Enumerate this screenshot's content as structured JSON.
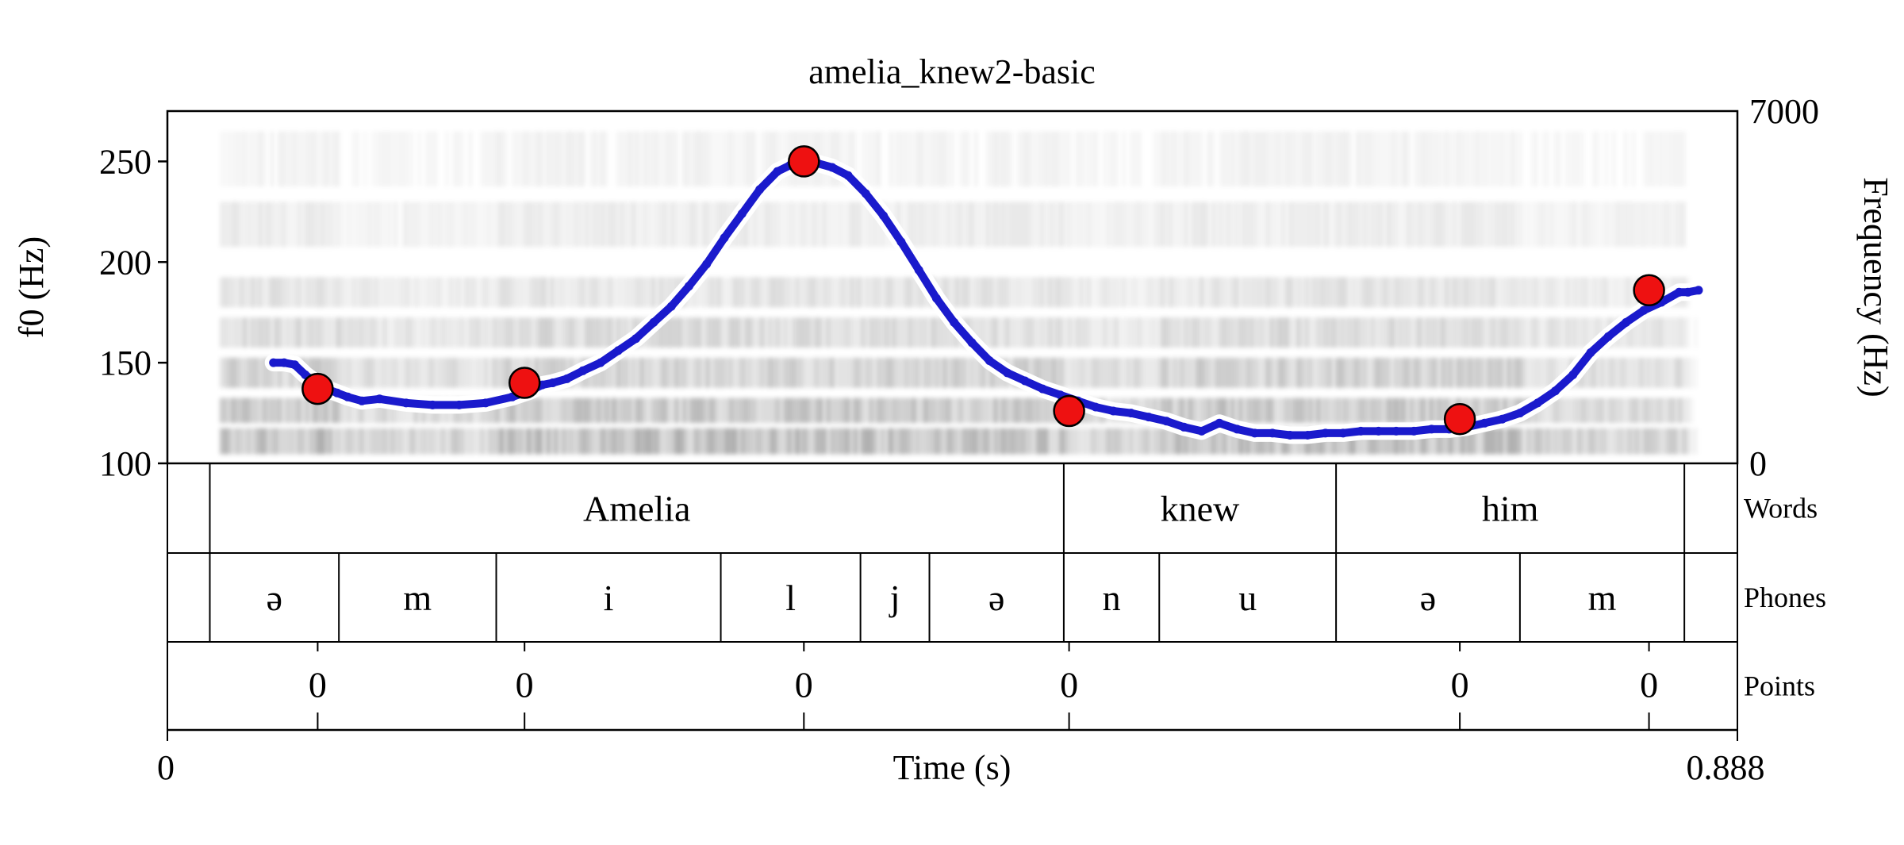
{
  "chart_data": {
    "type": "line",
    "title": "amelia_knew2-basic",
    "xlabel": "Time (s)",
    "ylabel": "f0 (Hz)",
    "ylabel_right": "Frequency (Hz)",
    "xlim": [
      0,
      0.888
    ],
    "x_tick_labels": [
      "0",
      "0.888"
    ],
    "ylim": [
      100,
      275
    ],
    "y_ticks": [
      100,
      150,
      200,
      250
    ],
    "y_tick_labels": [
      "100",
      "150",
      "200",
      "250"
    ],
    "y2lim": [
      0,
      7000
    ],
    "y2_tick_labels": [
      "7000",
      "0"
    ],
    "background": "spectrogram",
    "colors": {
      "f0_line": "#1a1acc",
      "f0_halo": "#ffffff",
      "target_fill": "#ee1111",
      "spectro": "#000000"
    },
    "f0_series": {
      "x": [
        0.06,
        0.066,
        0.072,
        0.078,
        0.084,
        0.09,
        0.096,
        0.102,
        0.11,
        0.12,
        0.135,
        0.15,
        0.165,
        0.18,
        0.195,
        0.205,
        0.212,
        0.218,
        0.226,
        0.235,
        0.245,
        0.255,
        0.265,
        0.275,
        0.285,
        0.295,
        0.305,
        0.315,
        0.325,
        0.335,
        0.345,
        0.352,
        0.36,
        0.368,
        0.376,
        0.385,
        0.395,
        0.405,
        0.415,
        0.425,
        0.435,
        0.445,
        0.455,
        0.465,
        0.475,
        0.485,
        0.495,
        0.505,
        0.515,
        0.525,
        0.535,
        0.545,
        0.555,
        0.565,
        0.575,
        0.585,
        0.595,
        0.605,
        0.615,
        0.625,
        0.635,
        0.645,
        0.655,
        0.665,
        0.675,
        0.685,
        0.695,
        0.705,
        0.715,
        0.725,
        0.735,
        0.745,
        0.755,
        0.765,
        0.775,
        0.785,
        0.795,
        0.805,
        0.815,
        0.825,
        0.835,
        0.845,
        0.855,
        0.86,
        0.866
      ],
      "y": [
        150,
        150,
        149,
        144,
        140,
        137,
        135,
        133,
        131,
        132,
        130,
        129,
        129,
        130,
        133,
        136,
        139,
        140,
        142,
        146,
        150,
        156,
        162,
        170,
        178,
        188,
        199,
        212,
        224,
        236,
        245,
        248,
        249,
        249,
        247,
        243,
        234,
        223,
        210,
        196,
        182,
        170,
        160,
        151,
        145,
        141,
        137,
        134,
        131,
        128,
        126,
        125,
        123,
        121,
        118,
        116,
        120,
        117,
        115,
        115,
        114,
        114,
        115,
        115,
        116,
        116,
        116,
        116,
        117,
        117,
        118,
        120,
        122,
        125,
        130,
        136,
        144,
        155,
        163,
        170,
        176,
        180,
        185,
        185,
        186
      ]
    },
    "targets": {
      "x": [
        0.085,
        0.202,
        0.36,
        0.51,
        0.731,
        0.838
      ],
      "y": [
        137,
        140,
        250,
        126,
        122,
        186
      ]
    },
    "tiers": [
      {
        "name": "Words",
        "intervals": [
          {
            "start": 0.0,
            "end": 0.024,
            "label": ""
          },
          {
            "start": 0.024,
            "end": 0.507,
            "label": "Amelia"
          },
          {
            "start": 0.507,
            "end": 0.661,
            "label": "knew"
          },
          {
            "start": 0.661,
            "end": 0.858,
            "label": "him"
          },
          {
            "start": 0.858,
            "end": 0.888,
            "label": ""
          }
        ]
      },
      {
        "name": "Phones",
        "intervals": [
          {
            "start": 0.0,
            "end": 0.024,
            "label": ""
          },
          {
            "start": 0.024,
            "end": 0.097,
            "label": "ə"
          },
          {
            "start": 0.097,
            "end": 0.186,
            "label": "m"
          },
          {
            "start": 0.186,
            "end": 0.313,
            "label": "i"
          },
          {
            "start": 0.313,
            "end": 0.392,
            "label": "l"
          },
          {
            "start": 0.392,
            "end": 0.431,
            "label": "j"
          },
          {
            "start": 0.431,
            "end": 0.507,
            "label": "ə"
          },
          {
            "start": 0.507,
            "end": 0.561,
            "label": "n"
          },
          {
            "start": 0.561,
            "end": 0.661,
            "label": "u"
          },
          {
            "start": 0.661,
            "end": 0.765,
            "label": "ə"
          },
          {
            "start": 0.765,
            "end": 0.858,
            "label": "m"
          },
          {
            "start": 0.858,
            "end": 0.888,
            "label": ""
          }
        ]
      },
      {
        "name": "Points",
        "points": [
          {
            "time": 0.085,
            "label": "0"
          },
          {
            "time": 0.202,
            "label": "0"
          },
          {
            "time": 0.36,
            "label": "0"
          },
          {
            "time": 0.51,
            "label": "0"
          },
          {
            "time": 0.731,
            "label": "0"
          },
          {
            "time": 0.838,
            "label": "0"
          }
        ]
      }
    ]
  }
}
